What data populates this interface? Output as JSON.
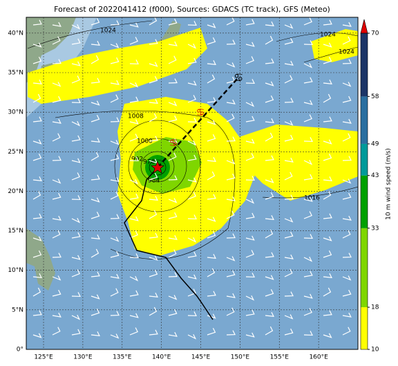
{
  "title": "Forecast of 2022041412 (f000), Sources: GDACS (TC track), GFS (Meteo)",
  "lon_lim": [
    122.8,
    165
  ],
  "lat_lim": [
    0,
    42
  ],
  "lon_ticks": [
    {
      "value": 125,
      "label": "125°E"
    },
    {
      "value": 130,
      "label": "130°E"
    },
    {
      "value": 135,
      "label": "135°E"
    },
    {
      "value": 140,
      "label": "140°E"
    },
    {
      "value": 145,
      "label": "145°E"
    },
    {
      "value": 150,
      "label": "150°E"
    },
    {
      "value": 155,
      "label": "155°E"
    },
    {
      "value": 160,
      "label": "160°E"
    }
  ],
  "lat_ticks": [
    {
      "value": 0,
      "label": "0°"
    },
    {
      "value": 5,
      "label": "5°N"
    },
    {
      "value": 10,
      "label": "10°N"
    },
    {
      "value": 15,
      "label": "15°N"
    },
    {
      "value": 20,
      "label": "20°N"
    },
    {
      "value": 25,
      "label": "25°N"
    },
    {
      "value": 30,
      "label": "30°N"
    },
    {
      "value": 35,
      "label": "35°N"
    },
    {
      "value": 40,
      "label": "40°N"
    }
  ],
  "colorbar": {
    "label": "10 m wind speed (m/s)",
    "bounds": [
      10,
      18,
      33,
      43,
      49,
      58,
      70
    ],
    "colors": [
      "#ffff00",
      "#7fd600",
      "#00a000",
      "#009a9a",
      "#2a6fa0",
      "#1c3567"
    ],
    "extend_color": "#e00000",
    "lim": [
      10,
      70
    ]
  },
  "contour_labels": [
    "1024",
    "1024",
    "1024",
    "1008",
    "1000",
    "992",
    "976",
    "984",
    "1016"
  ]
}
